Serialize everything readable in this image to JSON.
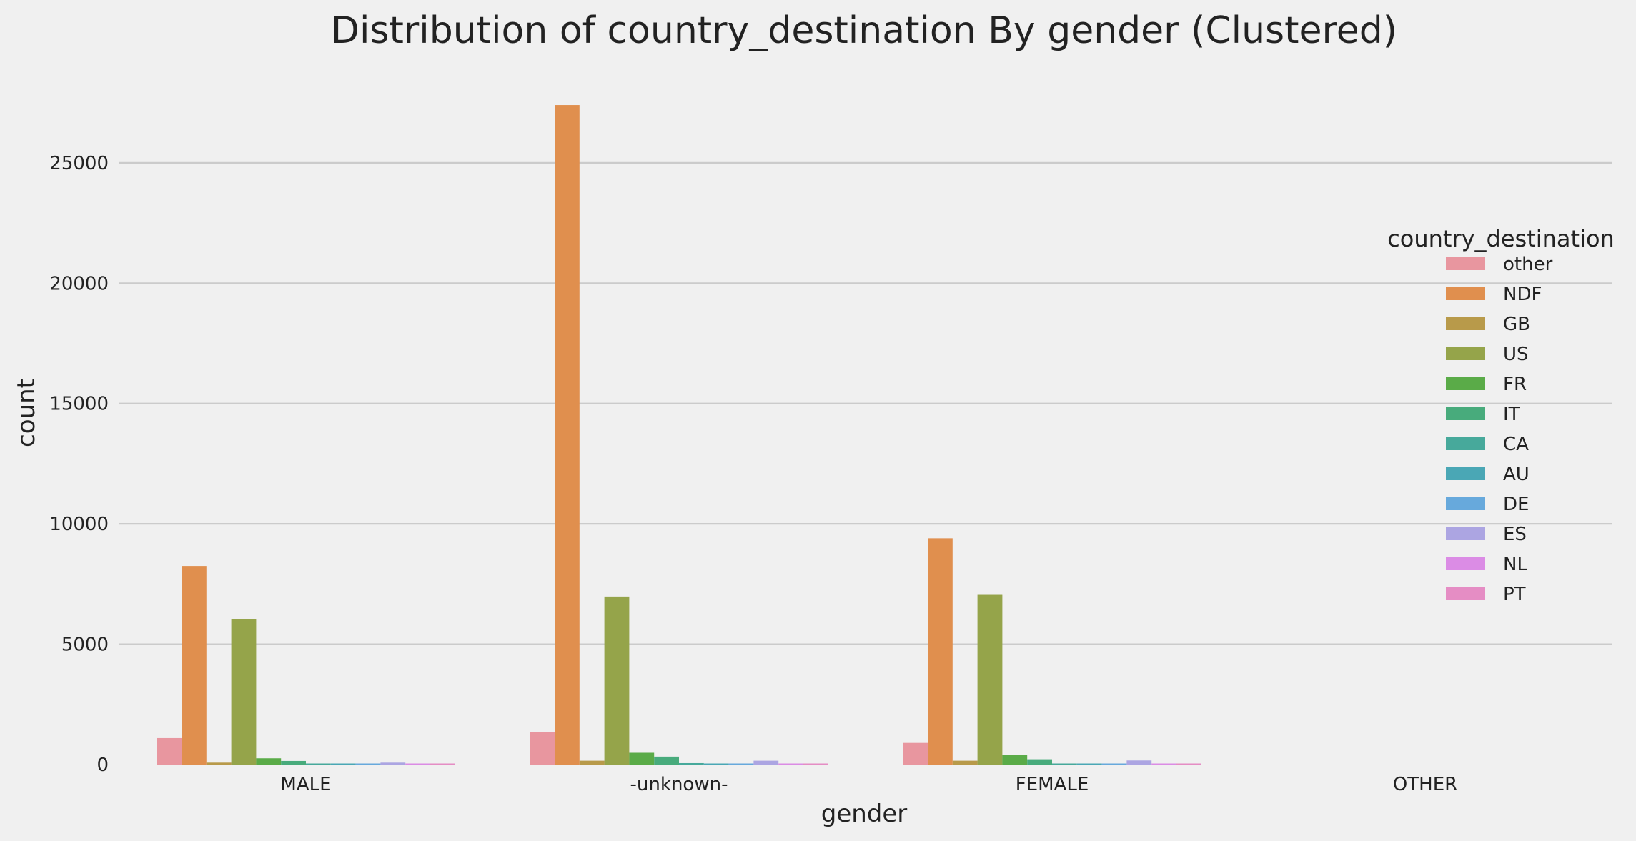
{
  "chart_data": {
    "type": "bar",
    "title": "Distribution of country_destination By gender (Clustered)",
    "xlabel": "gender",
    "ylabel": "count",
    "ylim": [
      0,
      28500
    ],
    "yticks": [
      0,
      5000,
      10000,
      15000,
      20000,
      25000
    ],
    "ytick_labels": [
      "0",
      "5000",
      "10000",
      "15000",
      "20000",
      "25000"
    ],
    "grid": true,
    "legend_title": "country_destination",
    "legend_position": "right",
    "categories": [
      "MALE",
      "-unknown-",
      "FEMALE",
      "OTHER"
    ],
    "series": [
      {
        "name": "other",
        "color": "#e8969f",
        "values": [
          1100,
          1350,
          900,
          0
        ]
      },
      {
        "name": "NDF",
        "color": "#e08f4e",
        "values": [
          8250,
          27400,
          9400,
          0
        ]
      },
      {
        "name": "GB",
        "color": "#b89a4a",
        "values": [
          80,
          160,
          160,
          0
        ]
      },
      {
        "name": "US",
        "color": "#95a44a",
        "values": [
          6050,
          6980,
          7050,
          0
        ]
      },
      {
        "name": "FR",
        "color": "#5aab48",
        "values": [
          260,
          490,
          400,
          0
        ]
      },
      {
        "name": "IT",
        "color": "#48ab7c",
        "values": [
          150,
          330,
          220,
          0
        ]
      },
      {
        "name": "CA",
        "color": "#47a99b",
        "values": [
          30,
          60,
          30,
          0
        ]
      },
      {
        "name": "AU",
        "color": "#4aa7b5",
        "values": [
          10,
          20,
          10,
          0
        ]
      },
      {
        "name": "DE",
        "color": "#67a9dc",
        "values": [
          20,
          30,
          20,
          0
        ]
      },
      {
        "name": "ES",
        "color": "#aca5e2",
        "values": [
          80,
          160,
          170,
          0
        ]
      },
      {
        "name": "NL",
        "color": "#db8ce5",
        "values": [
          10,
          20,
          10,
          0
        ]
      },
      {
        "name": "PT",
        "color": "#e58dc4",
        "values": [
          5,
          10,
          5,
          0
        ]
      }
    ]
  }
}
